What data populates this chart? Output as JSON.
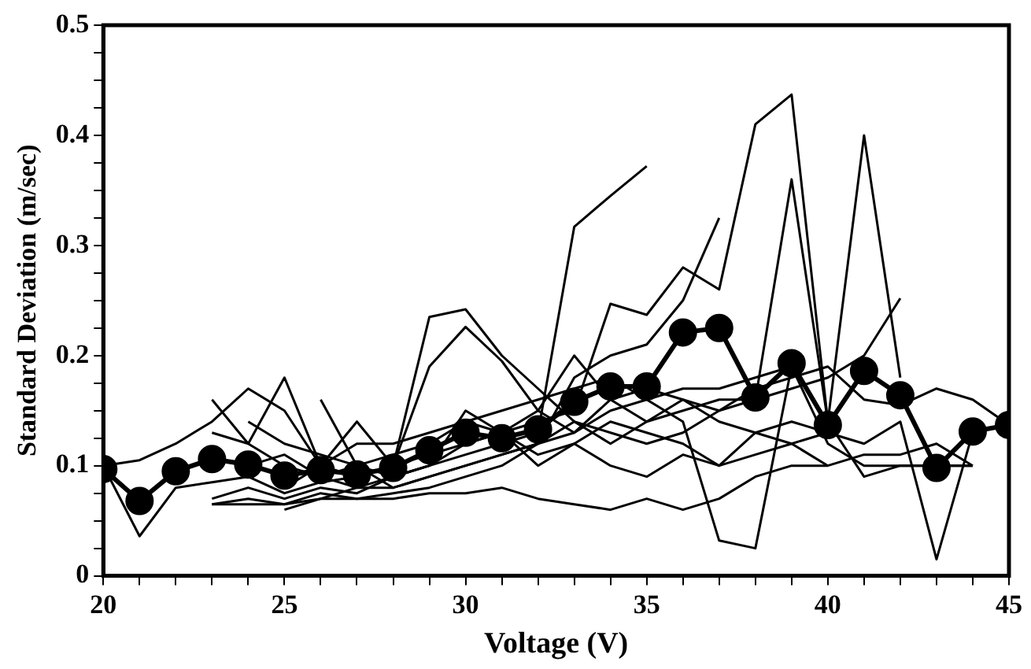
{
  "chart_data": {
    "type": "line",
    "xlabel": "Voltage (V)",
    "ylabel": "Standard Deviation (m/sec)",
    "x": [
      20,
      21,
      22,
      23,
      24,
      25,
      26,
      27,
      28,
      29,
      30,
      31,
      32,
      33,
      34,
      35,
      36,
      37,
      38,
      39,
      40,
      41,
      42,
      43,
      44,
      45
    ],
    "xlim": [
      20,
      45
    ],
    "xticks": [
      20,
      {
        "value": 21,
        "label": null
      },
      {
        "value": 22,
        "label": null
      },
      {
        "value": 23,
        "label": null
      },
      {
        "value": 24,
        "label": null
      },
      25,
      {
        "value": 26,
        "label": null
      },
      {
        "value": 27,
        "label": null
      },
      {
        "value": 28,
        "label": null
      },
      {
        "value": 29,
        "label": null
      },
      30,
      {
        "value": 31,
        "label": null
      },
      {
        "value": 32,
        "label": null
      },
      {
        "value": 33,
        "label": null
      },
      {
        "value": 34,
        "label": null
      },
      35,
      {
        "value": 36,
        "label": null
      },
      {
        "value": 37,
        "label": null
      },
      {
        "value": 38,
        "label": null
      },
      {
        "value": 39,
        "label": null
      },
      40,
      {
        "value": 41,
        "label": null
      },
      {
        "value": 42,
        "label": null
      },
      {
        "value": 43,
        "label": null
      },
      {
        "value": 44,
        "label": null
      },
      45
    ],
    "ylim": [
      0,
      0.5
    ],
    "yticks": [
      0,
      {
        "value": 0.025,
        "label": null
      },
      {
        "value": 0.05,
        "label": null
      },
      {
        "value": 0.075,
        "label": null
      },
      {
        "value": 0.1,
        "label": "0.1"
      },
      {
        "value": 0.125,
        "label": null
      },
      {
        "value": 0.15,
        "label": null
      },
      {
        "value": 0.175,
        "label": null
      },
      {
        "value": 0.2,
        "label": "0.2"
      },
      {
        "value": 0.225,
        "label": null
      },
      {
        "value": 0.25,
        "label": null
      },
      {
        "value": 0.275,
        "label": null
      },
      {
        "value": 0.3,
        "label": "0.3"
      },
      {
        "value": 0.325,
        "label": null
      },
      {
        "value": 0.35,
        "label": null
      },
      {
        "value": 0.375,
        "label": null
      },
      {
        "value": 0.4,
        "label": "0.4"
      },
      {
        "value": 0.425,
        "label": null
      },
      {
        "value": 0.45,
        "label": null
      },
      {
        "value": 0.475,
        "label": null
      },
      {
        "value": 0.5,
        "label": "0.5"
      }
    ],
    "grid": false,
    "legend": false,
    "line_style": "solid",
    "series": [
      {
        "color": "#000000",
        "marker": "none",
        "values": [
          0.1,
          0.036,
          0.08,
          0.085,
          0.09,
          0.075,
          0.085,
          0.09,
          0.1,
          0.235,
          0.242,
          0.2,
          0.17,
          0.14,
          0.12,
          0.14,
          0.16,
          0.15,
          0.17,
          0.18,
          0.19,
          0.16,
          0.155,
          0.17,
          0.16,
          0.137
        ]
      },
      {
        "color": "#000000",
        "marker": "none",
        "values": [
          0.1,
          0.105,
          0.12,
          0.14,
          0.17,
          0.15,
          0.1,
          0.09,
          0.1,
          0.19,
          0.226,
          0.195,
          0.15,
          0.13,
          0.16,
          0.17,
          0.16,
          0.14,
          0.13,
          0.12,
          0.13,
          null,
          null,
          null,
          null,
          null
        ]
      },
      {
        "color": "#000000",
        "marker": "none",
        "values": [
          null,
          null,
          null,
          0.07,
          0.08,
          0.07,
          0.08,
          0.075,
          0.09,
          0.1,
          0.11,
          0.12,
          0.13,
          0.317,
          0.345,
          0.372,
          null,
          null,
          null,
          null,
          null,
          null,
          null,
          null,
          null,
          null
        ]
      },
      {
        "color": "#000000",
        "marker": "none",
        "values": [
          null,
          null,
          null,
          0.16,
          0.12,
          0.1,
          0.09,
          0.08,
          0.09,
          0.1,
          0.12,
          0.13,
          0.14,
          0.15,
          0.247,
          0.237,
          0.28,
          0.26,
          0.41,
          0.437,
          0.14,
          null,
          null,
          null,
          null,
          null
        ]
      },
      {
        "color": "#000000",
        "marker": "none",
        "values": [
          null,
          null,
          null,
          0.065,
          0.065,
          0.065,
          0.07,
          0.07,
          0.075,
          0.08,
          0.09,
          0.1,
          0.12,
          0.18,
          0.2,
          0.21,
          0.25,
          0.325,
          null,
          null,
          null,
          null,
          null,
          null,
          null,
          null
        ]
      },
      {
        "color": "#000000",
        "marker": "none",
        "values": [
          null,
          null,
          null,
          null,
          0.1,
          0.11,
          0.09,
          0.1,
          0.11,
          0.12,
          0.14,
          0.13,
          0.15,
          0.2,
          0.16,
          0.14,
          0.15,
          0.16,
          0.16,
          0.36,
          0.14,
          0.09,
          0.1,
          0.1,
          0.1,
          null
        ]
      },
      {
        "color": "#000000",
        "marker": "none",
        "values": [
          null,
          null,
          null,
          null,
          null,
          0.08,
          0.1,
          0.12,
          0.12,
          0.13,
          0.14,
          0.15,
          0.16,
          0.17,
          0.18,
          0.16,
          0.17,
          0.17,
          0.18,
          0.19,
          0.14,
          0.4,
          0.18,
          null,
          null,
          null
        ]
      },
      {
        "color": "#000000",
        "marker": "none",
        "values": [
          null,
          null,
          null,
          null,
          null,
          null,
          0.16,
          0.1,
          0.09,
          0.1,
          0.15,
          0.13,
          0.1,
          0.12,
          0.14,
          0.13,
          0.12,
          0.1,
          0.13,
          0.14,
          0.13,
          0.12,
          0.14,
          0.015,
          0.13,
          null
        ]
      },
      {
        "color": "#000000",
        "marker": "none",
        "values": [
          null,
          null,
          null,
          null,
          null,
          0.06,
          0.07,
          0.08,
          0.08,
          0.09,
          0.1,
          0.11,
          0.12,
          0.13,
          0.15,
          0.16,
          0.14,
          0.032,
          0.025,
          0.19,
          0.12,
          0.1,
          0.1,
          0.1,
          0.1,
          null
        ]
      },
      {
        "color": "#000000",
        "marker": "none",
        "values": [
          null,
          null,
          null,
          null,
          0.14,
          0.12,
          0.11,
          0.1,
          0.08,
          0.09,
          0.1,
          0.11,
          0.12,
          0.14,
          0.13,
          0.12,
          0.13,
          0.15,
          0.16,
          0.17,
          0.18,
          0.2,
          0.252,
          null,
          null,
          null
        ]
      },
      {
        "color": "#000000",
        "marker": "none",
        "values": [
          null,
          null,
          null,
          0.065,
          0.07,
          0.065,
          0.075,
          0.07,
          0.07,
          0.075,
          0.075,
          0.08,
          0.07,
          0.065,
          0.06,
          0.07,
          0.06,
          0.07,
          0.09,
          0.1,
          0.1,
          0.11,
          0.11,
          0.12,
          0.1,
          null
        ]
      },
      {
        "color": "#000000",
        "marker": "none",
        "values": [
          null,
          null,
          null,
          0.13,
          0.12,
          0.18,
          0.1,
          0.14,
          0.1,
          0.11,
          0.12,
          0.13,
          0.11,
          0.12,
          0.1,
          0.09,
          0.11,
          0.1,
          0.11,
          0.12,
          0.1,
          null,
          null,
          null,
          null,
          null
        ]
      },
      {
        "color": "#000000",
        "marker": "circle",
        "values": [
          0.097,
          0.068,
          0.095,
          0.106,
          0.101,
          0.091,
          0.096,
          0.092,
          0.098,
          0.114,
          0.13,
          0.125,
          0.133,
          0.158,
          0.172,
          0.172,
          0.221,
          0.225,
          0.162,
          0.193,
          0.137,
          0.186,
          0.164,
          0.098,
          0.131,
          0.137
        ]
      }
    ]
  }
}
